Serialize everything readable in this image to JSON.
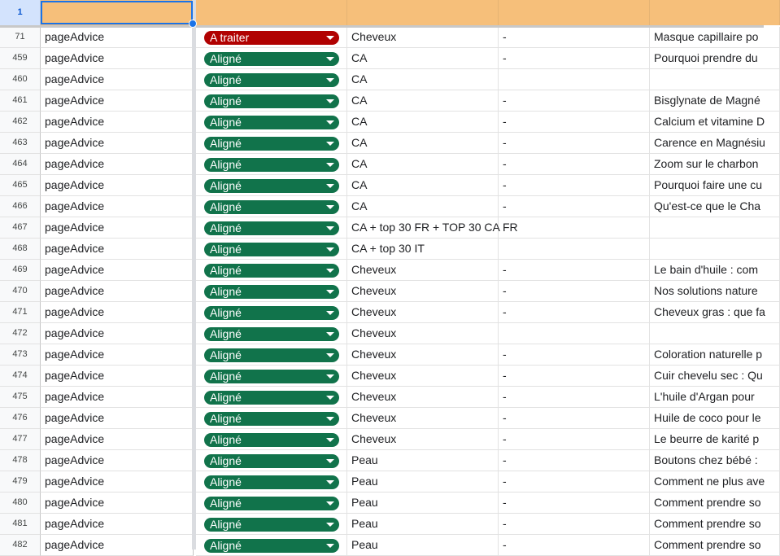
{
  "header_row": {
    "number": "1",
    "fill": "#f6bf7a"
  },
  "status_colors": {
    "A traiter": "#b10202",
    "Aligné": "#11734b"
  },
  "rows": [
    {
      "num": "71",
      "a": "pageAdvice",
      "status": "A traiter",
      "c": "Cheveux",
      "d": "-",
      "e": "Masque capillaire po"
    },
    {
      "num": "459",
      "a": "pageAdvice",
      "status": "Aligné",
      "c": "CA",
      "d": "-",
      "e": "Pourquoi prendre du"
    },
    {
      "num": "460",
      "a": "pageAdvice",
      "status": "Aligné",
      "c": "CA",
      "d": "",
      "e": ""
    },
    {
      "num": "461",
      "a": "pageAdvice",
      "status": "Aligné",
      "c": "CA",
      "d": "-",
      "e": "Bisglynate de Magné"
    },
    {
      "num": "462",
      "a": "pageAdvice",
      "status": "Aligné",
      "c": "CA",
      "d": "-",
      "e": "Calcium et vitamine D"
    },
    {
      "num": "463",
      "a": "pageAdvice",
      "status": "Aligné",
      "c": "CA",
      "d": "-",
      "e": "Carence en Magnésiu"
    },
    {
      "num": "464",
      "a": "pageAdvice",
      "status": "Aligné",
      "c": "CA",
      "d": "-",
      "e": "Zoom sur le charbon"
    },
    {
      "num": "465",
      "a": "pageAdvice",
      "status": "Aligné",
      "c": "CA",
      "d": "-",
      "e": "Pourquoi faire une cu"
    },
    {
      "num": "466",
      "a": "pageAdvice",
      "status": "Aligné",
      "c": "CA",
      "d": "-",
      "e": "Qu'est-ce que le Cha"
    },
    {
      "num": "467",
      "a": "pageAdvice",
      "status": "Aligné",
      "c": "CA + top 30 FR + TOP 30 CA FR",
      "d": "",
      "e": ""
    },
    {
      "num": "468",
      "a": "pageAdvice",
      "status": "Aligné",
      "c": "CA + top 30 IT",
      "d": "",
      "e": ""
    },
    {
      "num": "469",
      "a": "pageAdvice",
      "status": "Aligné",
      "c": "Cheveux",
      "d": "-",
      "e": "Le bain d'huile : com"
    },
    {
      "num": "470",
      "a": "pageAdvice",
      "status": "Aligné",
      "c": "Cheveux",
      "d": "-",
      "e": "Nos solutions nature"
    },
    {
      "num": "471",
      "a": "pageAdvice",
      "status": "Aligné",
      "c": "Cheveux",
      "d": "-",
      "e": "Cheveux gras : que fa"
    },
    {
      "num": "472",
      "a": "pageAdvice",
      "status": "Aligné",
      "c": "Cheveux",
      "d": "",
      "e": ""
    },
    {
      "num": "473",
      "a": "pageAdvice",
      "status": "Aligné",
      "c": "Cheveux",
      "d": "-",
      "e": "Coloration naturelle p"
    },
    {
      "num": "474",
      "a": "pageAdvice",
      "status": "Aligné",
      "c": "Cheveux",
      "d": "-",
      "e": "Cuir chevelu sec : Qu"
    },
    {
      "num": "475",
      "a": "pageAdvice",
      "status": "Aligné",
      "c": "Cheveux",
      "d": "-",
      "e": "L'huile d'Argan pour"
    },
    {
      "num": "476",
      "a": "pageAdvice",
      "status": "Aligné",
      "c": "Cheveux",
      "d": "-",
      "e": "Huile de coco pour le"
    },
    {
      "num": "477",
      "a": "pageAdvice",
      "status": "Aligné",
      "c": "Cheveux",
      "d": "-",
      "e": "Le beurre de karité p"
    },
    {
      "num": "478",
      "a": "pageAdvice",
      "status": "Aligné",
      "c": "Peau",
      "d": "-",
      "e": "Boutons chez bébé :"
    },
    {
      "num": "479",
      "a": "pageAdvice",
      "status": "Aligné",
      "c": "Peau",
      "d": "-",
      "e": "Comment ne plus ave"
    },
    {
      "num": "480",
      "a": "pageAdvice",
      "status": "Aligné",
      "c": "Peau",
      "d": "-",
      "e": "Comment prendre so"
    },
    {
      "num": "481",
      "a": "pageAdvice",
      "status": "Aligné",
      "c": "Peau",
      "d": "-",
      "e": "Comment prendre so"
    },
    {
      "num": "482",
      "a": "pageAdvice",
      "status": "Aligné",
      "c": "Peau",
      "d": "-",
      "e": "Comment prendre so"
    }
  ]
}
